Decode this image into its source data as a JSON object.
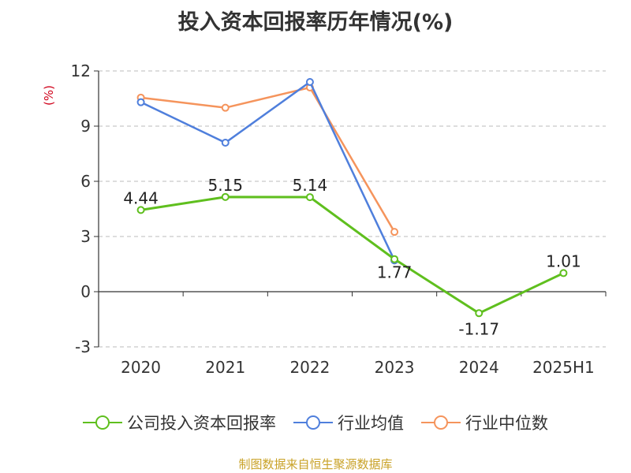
{
  "title": "投入资本回报率历年情况(%)",
  "unit_label": "(%)",
  "source": "制图数据来自恒生聚源数据库",
  "colors": {
    "series_0": "#5fbf1e",
    "series_1": "#4f7fdc",
    "series_2": "#f5945c",
    "unit": "#d0021b",
    "source": "#c9a227"
  },
  "chart_data": {
    "type": "line",
    "title": "投入资本回报率历年情况(%)",
    "ylabel": "(%)",
    "xlabel": "",
    "categories": [
      "2020",
      "2021",
      "2022",
      "2023",
      "2024",
      "2025H1"
    ],
    "ylim": [
      -3,
      12
    ],
    "yticks": [
      -3,
      0,
      3,
      6,
      9,
      12
    ],
    "ytick_labels": [
      "-3",
      "0",
      "3",
      "6",
      "9",
      "12"
    ],
    "grid": true,
    "legend_position": "bottom",
    "series": [
      {
        "name": "公司投入资本回报率",
        "values": [
          4.44,
          5.15,
          5.14,
          1.77,
          -1.17,
          1.01
        ],
        "labels": [
          "4.44",
          "5.15",
          "5.14",
          "1.77",
          "-1.17",
          "1.01"
        ]
      },
      {
        "name": "行业均值",
        "values": [
          10.3,
          8.1,
          11.4,
          1.7,
          null,
          null
        ]
      },
      {
        "name": "行业中位数",
        "values": [
          10.55,
          10.0,
          11.1,
          3.25,
          null,
          null
        ]
      }
    ]
  }
}
